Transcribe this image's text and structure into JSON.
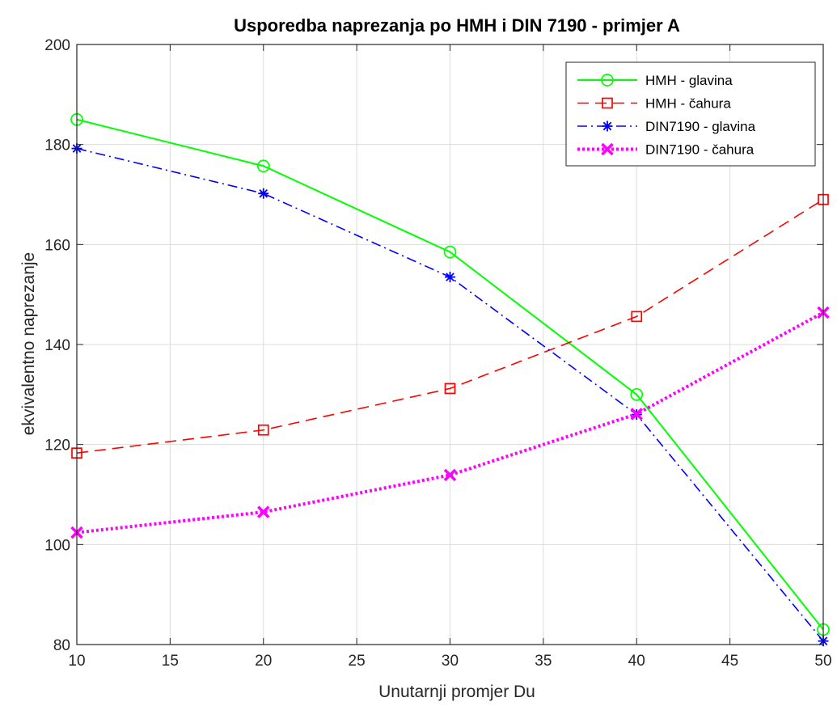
{
  "chart_data": {
    "type": "line",
    "title": "Usporedba naprezanja po HMH i DIN 7190 - primjer A",
    "xlabel": "Unutarnji promjer Du",
    "ylabel": "ekvivalentno naprezanje",
    "xlim": [
      10,
      50
    ],
    "ylim": [
      80,
      200
    ],
    "xticks": [
      10,
      15,
      20,
      25,
      30,
      35,
      40,
      45,
      50
    ],
    "yticks": [
      80,
      100,
      120,
      140,
      160,
      180,
      200
    ],
    "grid": true,
    "legend_position": "top-right",
    "x": [
      10,
      20,
      30,
      40,
      50
    ],
    "series": [
      {
        "name": "HMH - glavina",
        "values": [
          185.0,
          175.7,
          158.5,
          130.0,
          83.0
        ],
        "color": "#00ff00",
        "line_style": "solid",
        "marker": "circle"
      },
      {
        "name": "HMH - čahura",
        "values": [
          118.3,
          122.9,
          131.2,
          145.6,
          169.0
        ],
        "color": "#ff0000",
        "line_style": "dashed",
        "marker": "square"
      },
      {
        "name": "DIN7190 - glavina",
        "values": [
          179.2,
          170.2,
          153.5,
          126.0,
          80.7
        ],
        "color": "#0000ff",
        "line_style": "dashdot",
        "marker": "asterisk"
      },
      {
        "name": "DIN7190 - čahura",
        "values": [
          102.4,
          106.5,
          113.9,
          126.1,
          146.4
        ],
        "color": "#ff00ff",
        "line_style": "dotted",
        "marker": "x"
      }
    ]
  }
}
